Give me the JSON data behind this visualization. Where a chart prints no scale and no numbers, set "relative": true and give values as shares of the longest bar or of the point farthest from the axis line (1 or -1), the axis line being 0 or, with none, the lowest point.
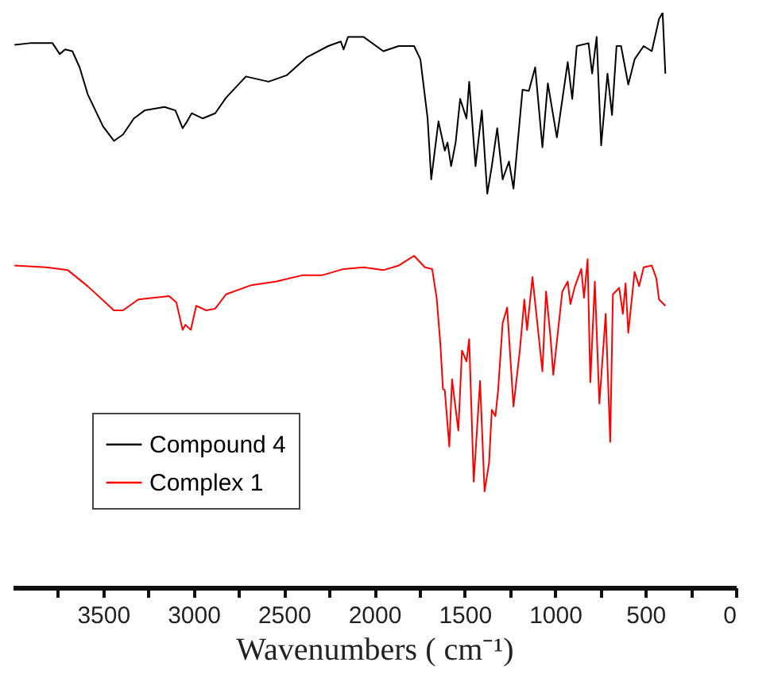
{
  "chart_data": {
    "type": "line",
    "relative": true,
    "xlabel": "Wavenumbers ( cm⁻¹)",
    "xlim": [
      4000,
      0
    ],
    "xticks": [
      {
        "value": 3750,
        "label": null
      },
      3500,
      {
        "value": 3250,
        "label": null
      },
      3000,
      {
        "value": 2750,
        "label": null
      },
      2500,
      {
        "value": 2250,
        "label": null
      },
      2000,
      {
        "value": 1750,
        "label": null
      },
      1500,
      {
        "value": 1250,
        "label": null
      },
      1000,
      {
        "value": 750,
        "label": null
      },
      500,
      {
        "value": 250,
        "label": null
      },
      0
    ],
    "grid": false,
    "legend": "bottom left",
    "marker": "none",
    "line_style": "solid",
    "series": [
      {
        "name": "Compound 4",
        "color": "#000000",
        "x": [
          3990,
          3905,
          3780,
          3740,
          3710,
          3670,
          3630,
          3585,
          3500,
          3440,
          3390,
          3330,
          3270,
          3160,
          3100,
          3060,
          3035,
          3010,
          2950,
          2880,
          2820,
          2710,
          2585,
          2485,
          2375,
          2255,
          2185,
          2170,
          2145,
          2060,
          1950,
          1865,
          1780,
          1745,
          1705,
          1685,
          1645,
          1610,
          1595,
          1575,
          1550,
          1525,
          1490,
          1475,
          1440,
          1405,
          1375,
          1350,
          1320,
          1290,
          1255,
          1230,
          1180,
          1145,
          1110,
          1070,
          1040,
          990,
          930,
          905,
          880,
          815,
          795,
          770,
          745,
          710,
          685,
          660,
          635,
          595,
          560,
          510,
          465,
          425,
          405,
          390
        ],
        "values": [
          0.944,
          0.947,
          0.947,
          0.928,
          0.936,
          0.933,
          0.905,
          0.858,
          0.802,
          0.777,
          0.788,
          0.816,
          0.83,
          0.836,
          0.83,
          0.799,
          0.811,
          0.825,
          0.816,
          0.825,
          0.852,
          0.889,
          0.88,
          0.891,
          0.922,
          0.942,
          0.95,
          0.936,
          0.958,
          0.958,
          0.933,
          0.942,
          0.942,
          0.919,
          0.816,
          0.71,
          0.811,
          0.76,
          0.774,
          0.733,
          0.774,
          0.85,
          0.816,
          0.88,
          0.733,
          0.83,
          0.685,
          0.733,
          0.799,
          0.71,
          0.741,
          0.694,
          0.866,
          0.864,
          0.905,
          0.766,
          0.877,
          0.783,
          0.914,
          0.85,
          0.942,
          0.947,
          0.894,
          0.958,
          0.769,
          0.894,
          0.822,
          0.942,
          0.942,
          0.875,
          0.919,
          0.942,
          0.933,
          0.989,
          1.0,
          0.894
        ]
      },
      {
        "name": "Complex 1",
        "color": "#ff0000",
        "x": [
          3990,
          3815,
          3695,
          3585,
          3440,
          3390,
          3305,
          3135,
          3095,
          3060,
          3045,
          3015,
          2985,
          2930,
          2880,
          2820,
          2680,
          2545,
          2400,
          2290,
          2170,
          2060,
          1950,
          1865,
          1780,
          1720,
          1680,
          1655,
          1635,
          1620,
          1610,
          1585,
          1570,
          1535,
          1515,
          1490,
          1475,
          1450,
          1415,
          1390,
          1365,
          1350,
          1330,
          1315,
          1290,
          1265,
          1230,
          1195,
          1170,
          1155,
          1125,
          1070,
          1050,
          1025,
          1010,
          960,
          930,
          915,
          890,
          855,
          840,
          820,
          805,
          780,
          755,
          720,
          695,
          680,
          645,
          625,
          610,
          595,
          560,
          535,
          510,
          465,
          440,
          425,
          390
        ],
        "values": [
          0.56,
          0.557,
          0.552,
          0.524,
          0.482,
          0.482,
          0.501,
          0.507,
          0.496,
          0.448,
          0.457,
          0.448,
          0.49,
          0.482,
          0.485,
          0.51,
          0.526,
          0.532,
          0.543,
          0.543,
          0.554,
          0.557,
          0.552,
          0.56,
          0.577,
          0.557,
          0.554,
          0.504,
          0.426,
          0.345,
          0.343,
          0.245,
          0.362,
          0.273,
          0.412,
          0.393,
          0.432,
          0.184,
          0.359,
          0.167,
          0.217,
          0.309,
          0.298,
          0.343,
          0.46,
          0.487,
          0.315,
          0.412,
          0.501,
          0.448,
          0.54,
          0.376,
          0.515,
          0.435,
          0.37,
          0.515,
          0.532,
          0.493,
          0.524,
          0.554,
          0.504,
          0.571,
          0.357,
          0.532,
          0.32,
          0.476,
          0.253,
          0.51,
          0.521,
          0.476,
          0.529,
          0.443,
          0.549,
          0.524,
          0.557,
          0.56,
          0.538,
          0.501,
          0.49
        ]
      }
    ]
  }
}
